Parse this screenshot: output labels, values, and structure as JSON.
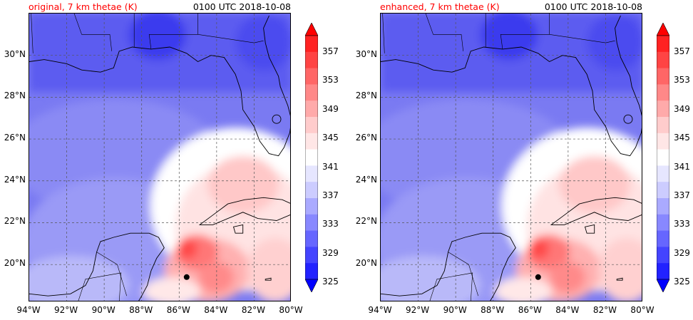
{
  "panels": [
    {
      "title_left": "original, 7 km thetae (K)",
      "title_right": "0100 UTC 2018-10-08"
    },
    {
      "title_left": "enhanced, 7 km thetae (K)",
      "title_right": "0100 UTC 2018-10-08"
    }
  ],
  "lat_labels": [
    "30°N",
    "28°N",
    "26°N",
    "24°N",
    "22°N",
    "20°N"
  ],
  "lon_labels": [
    "94°W",
    "92°W",
    "90°W",
    "88°W",
    "86°W",
    "84°W",
    "82°W",
    "80°W"
  ],
  "colorbar": {
    "labels": [
      "357",
      "353",
      "349",
      "345",
      "341",
      "337",
      "333",
      "329",
      "325"
    ],
    "colors": [
      "#ff0000",
      "#ff2222",
      "#ff4444",
      "#ff6666",
      "#ff8888",
      "#ffaaaa",
      "#ffcccc",
      "#ffe6e6",
      "#ffffff",
      "#e6e6ff",
      "#ccccff",
      "#aaaaff",
      "#8888ff",
      "#6666ff",
      "#4444ff",
      "#2222ff",
      "#0000ff"
    ]
  },
  "storm_marker": {
    "lat": 19.4,
    "lon": -85.6
  }
}
